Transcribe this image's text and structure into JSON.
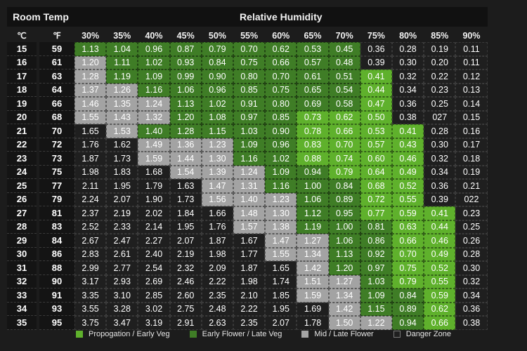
{
  "chart_data": {
    "type": "table",
    "header_left": "Room Temp",
    "header_right": "Relative Humidity",
    "col_celsius": "℃",
    "col_fahrenheit": "℉",
    "humidity": [
      "30%",
      "35%",
      "40%",
      "45%",
      "50%",
      "55%",
      "60%",
      "65%",
      "70%",
      "75%",
      "80%",
      "85%",
      "90%"
    ],
    "rows": [
      {
        "c": "15",
        "f": "59",
        "v": [
          "1.13",
          "1.04",
          "0.96",
          "0.87",
          "0.79",
          "0.70",
          "0.62",
          "0.53",
          "0.45",
          "0.36",
          "0.28",
          "0.19",
          "0.11"
        ],
        "z": [
          1,
          1,
          1,
          1,
          1,
          1,
          1,
          1,
          1,
          3,
          3,
          3,
          3
        ]
      },
      {
        "c": "16",
        "f": "61",
        "v": [
          "1.20",
          "1.11",
          "1.02",
          "0.93",
          "0.84",
          "0.75",
          "0.66",
          "0.57",
          "0.48",
          "0.39",
          "0.30",
          "0.20",
          "0.11"
        ],
        "z": [
          2,
          1,
          1,
          1,
          1,
          1,
          1,
          1,
          1,
          3,
          3,
          3,
          3
        ]
      },
      {
        "c": "17",
        "f": "63",
        "v": [
          "1.28",
          "1.19",
          "1.09",
          "0.99",
          "0.90",
          "0.80",
          "0.70",
          "0.61",
          "0.51",
          "0.41",
          "0.32",
          "0.22",
          "0.12"
        ],
        "z": [
          2,
          1,
          1,
          1,
          1,
          1,
          1,
          1,
          1,
          0,
          3,
          3,
          3
        ]
      },
      {
        "c": "18",
        "f": "64",
        "v": [
          "1.37",
          "1.26",
          "1.16",
          "1.06",
          "0.96",
          "0.85",
          "0.75",
          "0.65",
          "0.54",
          "0.44",
          "0.34",
          "0.23",
          "0.13"
        ],
        "z": [
          2,
          2,
          1,
          1,
          1,
          1,
          1,
          1,
          1,
          0,
          3,
          3,
          3
        ]
      },
      {
        "c": "19",
        "f": "66",
        "v": [
          "1.46",
          "1.35",
          "1.24",
          "1.13",
          "1.02",
          "0.91",
          "0.80",
          "0.69",
          "0.58",
          "0.47",
          "0.36",
          "0.25",
          "0.14"
        ],
        "z": [
          2,
          2,
          2,
          1,
          1,
          1,
          1,
          1,
          1,
          0,
          3,
          3,
          3
        ]
      },
      {
        "c": "20",
        "f": "68",
        "v": [
          "1.55",
          "1.43",
          "1.32",
          "1.20",
          "1.08",
          "0.97",
          "0.85",
          "0.73",
          "0.62",
          "0.50",
          "0.38",
          "027",
          "0.15"
        ],
        "z": [
          2,
          2,
          2,
          1,
          1,
          1,
          1,
          0,
          0,
          0,
          3,
          3,
          3
        ]
      },
      {
        "c": "21",
        "f": "70",
        "v": [
          "1.65",
          "1.53",
          "1.40",
          "1.28",
          "1.15",
          "1.03",
          "0.90",
          "0.78",
          "0.66",
          "0.53",
          "0.41",
          "0.28",
          "0.16"
        ],
        "z": [
          3,
          2,
          1,
          1,
          1,
          1,
          1,
          0,
          0,
          0,
          0,
          3,
          3
        ]
      },
      {
        "c": "22",
        "f": "72",
        "v": [
          "1.76",
          "1.62",
          "1.49",
          "1.36",
          "1.23",
          "1.09",
          "0.96",
          "0.83",
          "0.70",
          "0.57",
          "0.43",
          "0.30",
          "0.17"
        ],
        "z": [
          3,
          3,
          2,
          2,
          2,
          1,
          1,
          0,
          0,
          0,
          0,
          3,
          3
        ]
      },
      {
        "c": "23",
        "f": "73",
        "v": [
          "1.87",
          "1.73",
          "1.59",
          "1.44",
          "1.30",
          "1.16",
          "1.02",
          "0.88",
          "0.74",
          "0.60",
          "0.46",
          "0.32",
          "0.18"
        ],
        "z": [
          3,
          3,
          2,
          2,
          2,
          1,
          1,
          0,
          0,
          0,
          0,
          3,
          3
        ]
      },
      {
        "c": "24",
        "f": "75",
        "v": [
          "1.98",
          "1.83",
          "1.68",
          "1.54",
          "1.39",
          "1.24",
          "1.09",
          "0.94",
          "0.79",
          "0.64",
          "0.49",
          "0.34",
          "0.19"
        ],
        "z": [
          3,
          3,
          3,
          2,
          2,
          2,
          1,
          1,
          0,
          0,
          0,
          3,
          3
        ]
      },
      {
        "c": "25",
        "f": "77",
        "v": [
          "2.11",
          "1.95",
          "1.79",
          "1.63",
          "1.47",
          "1.31",
          "1.16",
          "1.00",
          "0.84",
          "0.68",
          "0.52",
          "0.36",
          "0.21"
        ],
        "z": [
          3,
          3,
          3,
          3,
          2,
          2,
          1,
          1,
          1,
          0,
          0,
          3,
          3
        ]
      },
      {
        "c": "26",
        "f": "79",
        "v": [
          "2.24",
          "2.07",
          "1.90",
          "1.73",
          "1.56",
          "1.40",
          "1.23",
          "1.06",
          "0.89",
          "0.72",
          "0.55",
          "0.39",
          "022"
        ],
        "z": [
          3,
          3,
          3,
          3,
          2,
          2,
          2,
          1,
          1,
          0,
          0,
          3,
          3
        ]
      },
      {
        "c": "27",
        "f": "81",
        "v": [
          "2.37",
          "2.19",
          "2.02",
          "1.84",
          "1.66",
          "1.48",
          "1.30",
          "1.12",
          "0.95",
          "0.77",
          "0.59",
          "0.41",
          "0.23"
        ],
        "z": [
          3,
          3,
          3,
          3,
          3,
          2,
          2,
          1,
          1,
          0,
          0,
          0,
          3
        ]
      },
      {
        "c": "28",
        "f": "83",
        "v": [
          "2.52",
          "2.33",
          "2.14",
          "1.95",
          "1.76",
          "1.57",
          "1.38",
          "1.19",
          "1.00",
          "0.81",
          "0.63",
          "0.44",
          "0.25"
        ],
        "z": [
          3,
          3,
          3,
          3,
          3,
          2,
          2,
          1,
          1,
          1,
          0,
          0,
          3
        ]
      },
      {
        "c": "29",
        "f": "84",
        "v": [
          "2.67",
          "2.47",
          "2.27",
          "2.07",
          "1.87",
          "1.67",
          "1.47",
          "1.27",
          "1.06",
          "0.86",
          "0.66",
          "0.46",
          "0.26"
        ],
        "z": [
          3,
          3,
          3,
          3,
          3,
          3,
          2,
          2,
          1,
          1,
          0,
          0,
          3
        ]
      },
      {
        "c": "30",
        "f": "86",
        "v": [
          "2.83",
          "2.61",
          "2.40",
          "2.19",
          "1.98",
          "1.77",
          "1.55",
          "1.34",
          "1.13",
          "0.92",
          "0.70",
          "0.49",
          "0.28"
        ],
        "z": [
          3,
          3,
          3,
          3,
          3,
          3,
          2,
          2,
          1,
          1,
          0,
          0,
          3
        ]
      },
      {
        "c": "31",
        "f": "88",
        "v": [
          "2.99",
          "2.77",
          "2.54",
          "2.32",
          "2.09",
          "1.87",
          "1.65",
          "1.42",
          "1.20",
          "0.97",
          "0.75",
          "0.52",
          "0.30"
        ],
        "z": [
          3,
          3,
          3,
          3,
          3,
          3,
          3,
          2,
          1,
          1,
          0,
          0,
          3
        ]
      },
      {
        "c": "32",
        "f": "90",
        "v": [
          "3.17",
          "2.93",
          "2.69",
          "2.46",
          "2.22",
          "1.98",
          "1.74",
          "1.51",
          "1.27",
          "1.03",
          "0.79",
          "0.55",
          "0.32"
        ],
        "z": [
          3,
          3,
          3,
          3,
          3,
          3,
          3,
          2,
          2,
          1,
          0,
          0,
          3
        ]
      },
      {
        "c": "33",
        "f": "91",
        "v": [
          "3.35",
          "3.10",
          "2.85",
          "2.60",
          "2.35",
          "2.10",
          "1.85",
          "1.59",
          "1.34",
          "1.09",
          "0.84",
          "0.59",
          "0.34"
        ],
        "z": [
          3,
          3,
          3,
          3,
          3,
          3,
          3,
          2,
          2,
          1,
          1,
          0,
          3
        ]
      },
      {
        "c": "34",
        "f": "93",
        "v": [
          "3.55",
          "3.28",
          "3.02",
          "2.75",
          "2.48",
          "2.22",
          "1.95",
          "1.69",
          "1.42",
          "1.15",
          "0.89",
          "0.62",
          "0.36"
        ],
        "z": [
          3,
          3,
          3,
          3,
          3,
          3,
          3,
          3,
          2,
          1,
          1,
          0,
          3
        ]
      },
      {
        "c": "35",
        "f": "95",
        "v": [
          "3.75",
          "3.47",
          "3.19",
          "2.91",
          "2.63",
          "2.35",
          "2.07",
          "1.78",
          "1.50",
          "1.22",
          "0.94",
          "0.66",
          "0.38"
        ],
        "z": [
          3,
          3,
          3,
          3,
          3,
          3,
          3,
          3,
          2,
          2,
          1,
          0,
          3
        ]
      }
    ],
    "zone_colors": [
      "#5fb12c",
      "#3f7d26",
      "#a3a3a3",
      "#1f1f1f"
    ],
    "legend": [
      {
        "label": "Propogation / Early Veg",
        "color": "#5fb12c"
      },
      {
        "label": "Early Flower / Late Veg",
        "color": "#3f7d26"
      },
      {
        "label": "Mid / Late Flower",
        "color": "#a3a3a3"
      },
      {
        "label": "Danger Zone",
        "color": "#1f1f1f"
      }
    ]
  }
}
